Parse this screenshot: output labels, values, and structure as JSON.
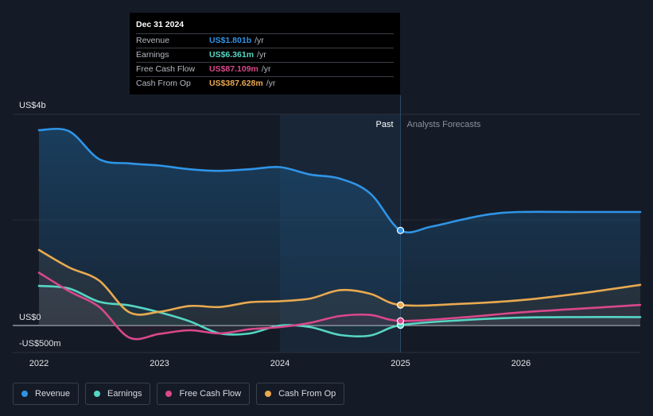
{
  "tooltip": {
    "date": "Dec 31 2024",
    "rows": [
      {
        "label": "Revenue",
        "value": "US$1.801b",
        "unit": "/yr",
        "color": "#2f94e6"
      },
      {
        "label": "Earnings",
        "value": "US$6.361m",
        "unit": "/yr",
        "color": "#56d6c4"
      },
      {
        "label": "Free Cash Flow",
        "value": "US$87.109m",
        "unit": "/yr",
        "color": "#d9488b"
      },
      {
        "label": "Cash From Op",
        "value": "US$387.628m",
        "unit": "/yr",
        "color": "#e8a950"
      }
    ]
  },
  "legend": [
    {
      "label": "Revenue",
      "color": "#2f94e6"
    },
    {
      "label": "Earnings",
      "color": "#56d6c4"
    },
    {
      "label": "Free Cash Flow",
      "color": "#d9488b"
    },
    {
      "label": "Cash From Op",
      "color": "#e8a950"
    }
  ],
  "chart_data": {
    "type": "line",
    "title": "",
    "xlabel": "",
    "ylabel": "",
    "y_unit": "US$ millions",
    "ylim": [
      -500,
      4000
    ],
    "xlim": [
      2021.8,
      2026.99
    ],
    "y_tick_labels": [
      {
        "value": 4000,
        "label": "US$4b"
      },
      {
        "value": 0,
        "label": "US$0"
      },
      {
        "value": -500,
        "label": "-US$500m"
      }
    ],
    "x_ticks": [
      2022,
      2023,
      2024,
      2025,
      2026
    ],
    "x_tick_labels": [
      "2022",
      "2023",
      "2024",
      "2025",
      "2026"
    ],
    "divider_x": 2025.0,
    "highlight_range": [
      2024.0,
      2025.0
    ],
    "past_label": "Past",
    "forecast_label": "Analysts Forecasts",
    "marker_x": 2025.0,
    "series": [
      {
        "name": "Revenue",
        "color": "#2f94e6",
        "fill": true,
        "x": [
          2022.0,
          2022.25,
          2022.5,
          2022.75,
          2023.0,
          2023.25,
          2023.5,
          2023.75,
          2024.0,
          2024.25,
          2024.5,
          2024.75,
          2025.0,
          2025.25,
          2025.5,
          2025.75,
          2026.0,
          2026.5,
          2026.99
        ],
        "y": [
          3700,
          3680,
          3150,
          3070,
          3030,
          2960,
          2930,
          2960,
          3000,
          2860,
          2780,
          2500,
          1801,
          1870,
          2000,
          2110,
          2150,
          2150,
          2150
        ]
      },
      {
        "name": "Earnings",
        "color": "#56d6c4",
        "fill": false,
        "x": [
          2022.0,
          2022.25,
          2022.5,
          2022.75,
          2023.0,
          2023.25,
          2023.5,
          2023.75,
          2024.0,
          2024.25,
          2024.5,
          2024.75,
          2025.0,
          2025.5,
          2026.0,
          2026.5,
          2026.99
        ],
        "y": [
          750,
          700,
          450,
          380,
          250,
          80,
          -150,
          -150,
          0,
          -30,
          -180,
          -190,
          6.361,
          100,
          150,
          160,
          160
        ]
      },
      {
        "name": "Free Cash Flow",
        "color": "#d9488b",
        "fill": false,
        "x": [
          2022.0,
          2022.25,
          2022.5,
          2022.75,
          2023.0,
          2023.25,
          2023.5,
          2023.75,
          2024.0,
          2024.25,
          2024.5,
          2024.75,
          2025.0,
          2025.5,
          2026.0,
          2026.5,
          2026.99
        ],
        "y": [
          1000,
          650,
          350,
          -230,
          -160,
          -90,
          -150,
          -70,
          -30,
          50,
          180,
          200,
          87.109,
          150,
          250,
          320,
          390
        ]
      },
      {
        "name": "Cash From Op",
        "color": "#e8a950",
        "fill": false,
        "x": [
          2022.0,
          2022.25,
          2022.5,
          2022.75,
          2023.0,
          2023.25,
          2023.5,
          2023.75,
          2024.0,
          2024.25,
          2024.5,
          2024.75,
          2025.0,
          2025.5,
          2026.0,
          2026.5,
          2026.99
        ],
        "y": [
          1430,
          1100,
          850,
          250,
          260,
          370,
          350,
          440,
          460,
          510,
          670,
          600,
          387.628,
          410,
          480,
          610,
          770
        ]
      }
    ]
  }
}
